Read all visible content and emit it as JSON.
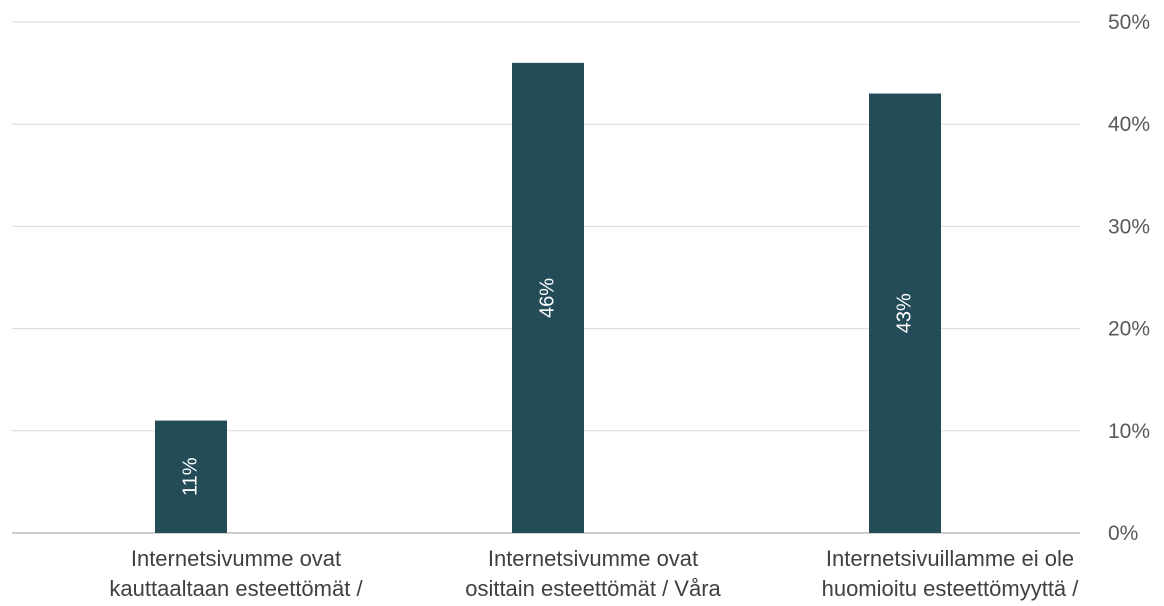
{
  "chart_data": {
    "type": "bar",
    "categories": [
      [
        "Internetsivumme ovat",
        "kauttaaltaan esteettömät /"
      ],
      [
        "Internetsivumme ovat",
        "osittain esteettömät / Våra"
      ],
      [
        "Internetsivuillamme ei ole",
        "huomioitu esteettömyyttä /"
      ]
    ],
    "values": [
      11,
      46,
      43
    ],
    "data_labels": [
      "11%",
      "46%",
      "43%"
    ],
    "yticks": [
      "0%",
      "10%",
      "20%",
      "30%",
      "40%",
      "50%"
    ],
    "ylim": [
      0,
      50
    ],
    "y_axis_side": "right",
    "grid": true,
    "bar_color": "#234b58",
    "grid_color": "#d9d9d9",
    "label_rotation": -90
  }
}
